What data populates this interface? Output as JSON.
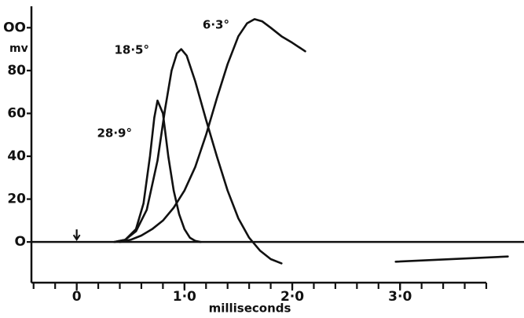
{
  "chart_data": {
    "type": "line",
    "y_label": "mv",
    "x_label": "milliseconds",
    "xlim": [
      -0.42,
      4.15
    ],
    "ylim": [
      -19,
      110
    ],
    "xticks": [
      {
        "value": 0,
        "label": "0"
      },
      {
        "value": 1,
        "label": "1·0"
      },
      {
        "value": 2,
        "label": "2·0"
      },
      {
        "value": 3,
        "label": "3·0"
      }
    ],
    "x_minor_ticks": [
      -0.4,
      -0.2,
      0,
      0.2,
      0.4,
      0.6,
      0.8,
      1,
      1.2,
      1.4,
      1.6,
      1.8,
      2,
      2.2,
      2.4,
      2.6,
      2.8,
      3,
      3.2,
      3.4,
      3.6,
      3.8
    ],
    "yticks": [
      {
        "value": 0,
        "label": "O"
      },
      20,
      40,
      60,
      80,
      {
        "value": 100,
        "label": "OO"
      }
    ],
    "series": [
      {
        "name": "28·9°",
        "color": "#111111",
        "x": [
          0.35,
          0.45,
          0.55,
          0.62,
          0.68,
          0.72,
          0.75,
          0.8,
          0.85,
          0.9,
          0.95,
          1.0,
          1.05,
          1.1,
          1.15
        ],
        "values": [
          0,
          1,
          6,
          18,
          40,
          58,
          66,
          60,
          40,
          24,
          13,
          6,
          2,
          0.5,
          0
        ]
      },
      {
        "name": "18·5°",
        "color": "#111111",
        "x": [
          0.35,
          0.45,
          0.55,
          0.65,
          0.75,
          0.82,
          0.88,
          0.93,
          0.97,
          1.02,
          1.1,
          1.2,
          1.3,
          1.4,
          1.5,
          1.6,
          1.7,
          1.8,
          1.9
        ],
        "values": [
          0,
          1,
          5,
          15,
          38,
          62,
          80,
          88,
          90,
          87,
          75,
          57,
          40,
          24,
          11,
          2,
          -4,
          -8,
          -10
        ]
      },
      {
        "name": "6·3°",
        "color": "#111111",
        "x": [
          0.4,
          0.5,
          0.6,
          0.7,
          0.8,
          0.9,
          1.0,
          1.1,
          1.2,
          1.3,
          1.4,
          1.5,
          1.58,
          1.65,
          1.72,
          1.8,
          1.9,
          2.0,
          2.12
        ],
        "values": [
          0,
          1,
          3,
          6,
          10,
          16,
          24,
          35,
          50,
          67,
          83,
          96,
          102,
          104,
          103,
          100,
          96,
          93,
          89
        ]
      },
      {
        "color": "#111111",
        "x": [
          2.96,
          4.0
        ],
        "values": [
          -9.2,
          -6.8
        ]
      }
    ]
  }
}
